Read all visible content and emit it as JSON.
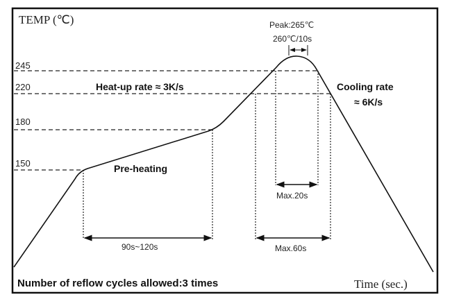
{
  "axis": {
    "y_label": "TEMP  (℃)",
    "x_label": "Time (sec.)"
  },
  "levels": [
    "245",
    "220",
    "180",
    "150"
  ],
  "peak": {
    "label": "Peak:265℃",
    "hold": "260℃/10s"
  },
  "heat_up": "Heat-up rate ≈ 3K/s",
  "cooling": {
    "line1": "Cooling rate",
    "line2": "≈ 6K/s"
  },
  "preheat": "Pre-heating",
  "durations": {
    "preheat": "90s~120s",
    "above245": "Max.20s",
    "above220": "Max.60s"
  },
  "footer": "Number of reflow cycles allowed:3 times"
}
